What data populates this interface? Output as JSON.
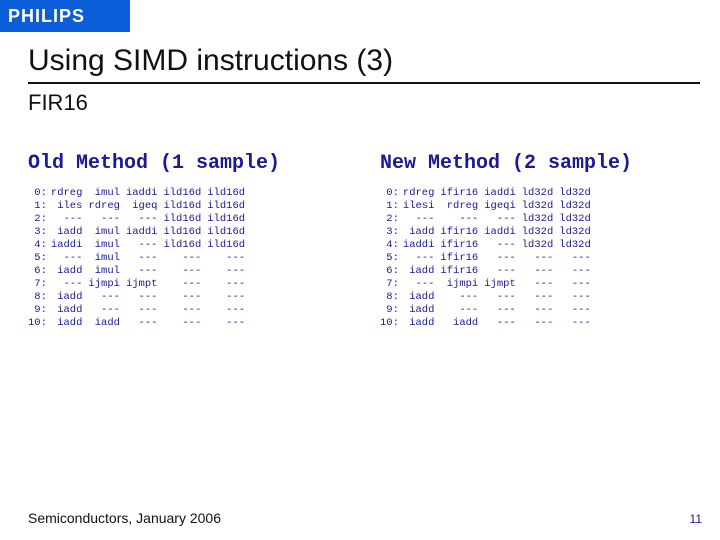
{
  "brand": "PHILIPS",
  "title": "Using SIMD instructions (3)",
  "subtitle": "FIR16",
  "footer": "Semiconductors, January 2006",
  "page_number": "11",
  "colors": {
    "brand_bg": "#0b5ed7",
    "accent_text": "#19199a",
    "body_text": "#111111",
    "background": "#ffffff"
  },
  "left": {
    "title": "Old Method (1 sample)",
    "rows": [
      {
        "idx": "0:",
        "c": [
          "rdreg",
          "imul",
          "iaddi",
          "ild16d",
          "ild16d"
        ]
      },
      {
        "idx": "1:",
        "c": [
          "iles",
          "rdreg",
          "igeq",
          "ild16d",
          "ild16d"
        ]
      },
      {
        "idx": "2:",
        "c": [
          "---",
          "---",
          "---",
          "ild16d",
          "ild16d"
        ]
      },
      {
        "idx": "3:",
        "c": [
          "iadd",
          "imul",
          "iaddi",
          "ild16d",
          "ild16d"
        ]
      },
      {
        "idx": "4:",
        "c": [
          "iaddi",
          "imul",
          "---",
          "ild16d",
          "ild16d"
        ]
      },
      {
        "idx": "5:",
        "c": [
          "---",
          "imul",
          "---",
          "---",
          "---"
        ]
      },
      {
        "idx": "6:",
        "c": [
          "iadd",
          "imul",
          "---",
          "---",
          "---"
        ]
      },
      {
        "idx": "7:",
        "c": [
          "---",
          "ijmpi",
          "ijmpt",
          "---",
          "---"
        ]
      },
      {
        "idx": "8:",
        "c": [
          "iadd",
          "---",
          "---",
          "---",
          "---"
        ]
      },
      {
        "idx": "9:",
        "c": [
          "iadd",
          "---",
          "---",
          "---",
          "---"
        ]
      },
      {
        "idx": "10:",
        "c": [
          "iadd",
          "iadd",
          "---",
          "---",
          "---"
        ]
      }
    ]
  },
  "right": {
    "title": "New Method (2 sample)",
    "rows": [
      {
        "idx": "0:",
        "c": [
          "rdreg",
          "ifir16",
          "iaddi",
          "ld32d",
          "ld32d"
        ]
      },
      {
        "idx": "1:",
        "c": [
          "ilesi",
          "rdreg",
          "igeqi",
          "ld32d",
          "ld32d"
        ]
      },
      {
        "idx": "2:",
        "c": [
          "---",
          "---",
          "---",
          "ld32d",
          "ld32d"
        ]
      },
      {
        "idx": "3:",
        "c": [
          "iadd",
          "ifir16",
          "iaddi",
          "ld32d",
          "ld32d"
        ]
      },
      {
        "idx": "4:",
        "c": [
          "iaddi",
          "ifir16",
          "---",
          "ld32d",
          "ld32d"
        ]
      },
      {
        "idx": "5:",
        "c": [
          "---",
          "ifir16",
          "---",
          "---",
          "---"
        ]
      },
      {
        "idx": "6:",
        "c": [
          "iadd",
          "ifir16",
          "---",
          "---",
          "---"
        ]
      },
      {
        "idx": "7:",
        "c": [
          "---",
          "ijmpi",
          "ijmpt",
          "---",
          "---"
        ]
      },
      {
        "idx": "8:",
        "c": [
          "iadd",
          "---",
          "---",
          "---",
          "---"
        ]
      },
      {
        "idx": "9:",
        "c": [
          "iadd",
          "---",
          "---",
          "---",
          "---"
        ]
      },
      {
        "idx": "10:",
        "c": [
          "iadd",
          "iadd",
          "---",
          "---",
          "---"
        ]
      }
    ]
  }
}
